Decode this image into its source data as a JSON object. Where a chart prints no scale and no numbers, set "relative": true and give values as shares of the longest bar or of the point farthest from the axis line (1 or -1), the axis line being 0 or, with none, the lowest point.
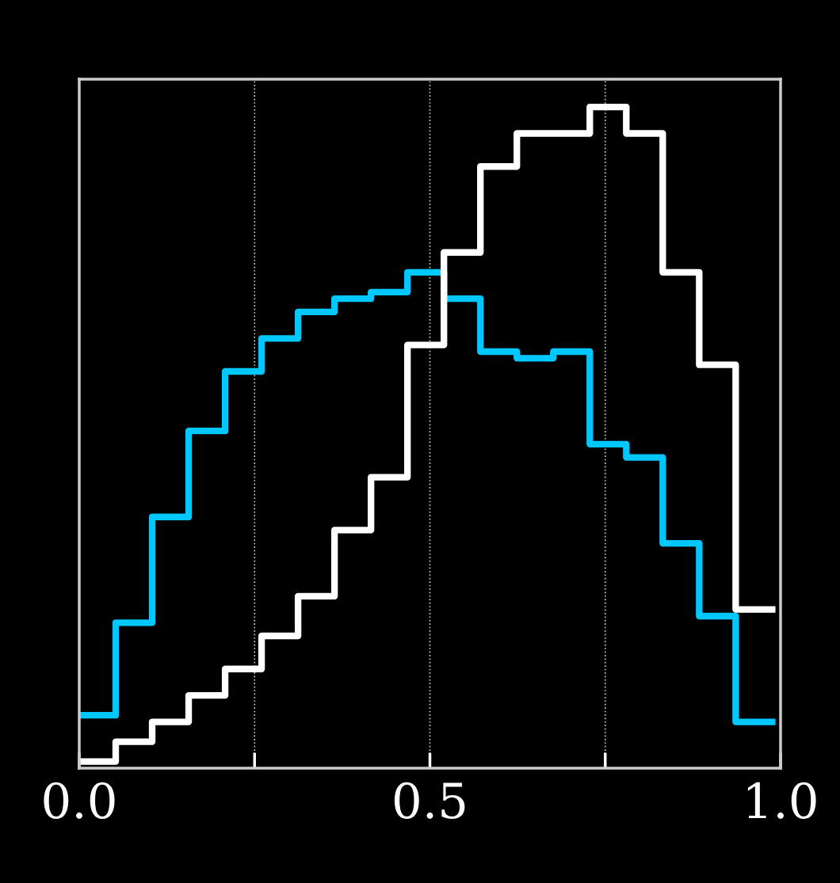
{
  "chart_data": {
    "type": "step",
    "relative": true,
    "x": [
      0,
      0.052,
      0.104,
      0.156,
      0.208,
      0.26,
      0.312,
      0.364,
      0.416,
      0.468,
      0.52,
      0.572,
      0.624,
      0.676,
      0.728,
      0.78,
      0.832,
      0.884,
      0.936,
      0.988
    ],
    "series": [
      {
        "color": "#00c8ff",
        "values": [
          0.08,
          0.22,
          0.38,
          0.51,
          0.6,
          0.65,
          0.69,
          0.71,
          0.72,
          0.75,
          0.71,
          0.63,
          0.62,
          0.63,
          0.49,
          0.47,
          0.34,
          0.23,
          0.07,
          0.07
        ]
      },
      {
        "color": "#ffffff",
        "values": [
          0.01,
          0.04,
          0.07,
          0.11,
          0.15,
          0.2,
          0.26,
          0.36,
          0.44,
          0.64,
          0.78,
          0.91,
          0.96,
          0.96,
          1.0,
          0.96,
          0.75,
          0.61,
          0.24,
          0.24
        ]
      }
    ],
    "xlim": [
      0,
      1
    ],
    "xticks": [
      {
        "value": 0,
        "label": "0.0"
      },
      {
        "value": 0.25,
        "label": null
      },
      {
        "value": 0.5,
        "label": "0.5"
      },
      {
        "value": 0.75,
        "label": null
      },
      {
        "value": 1,
        "label": "1.0"
      }
    ],
    "grid": "x",
    "tick_labels": "x"
  }
}
